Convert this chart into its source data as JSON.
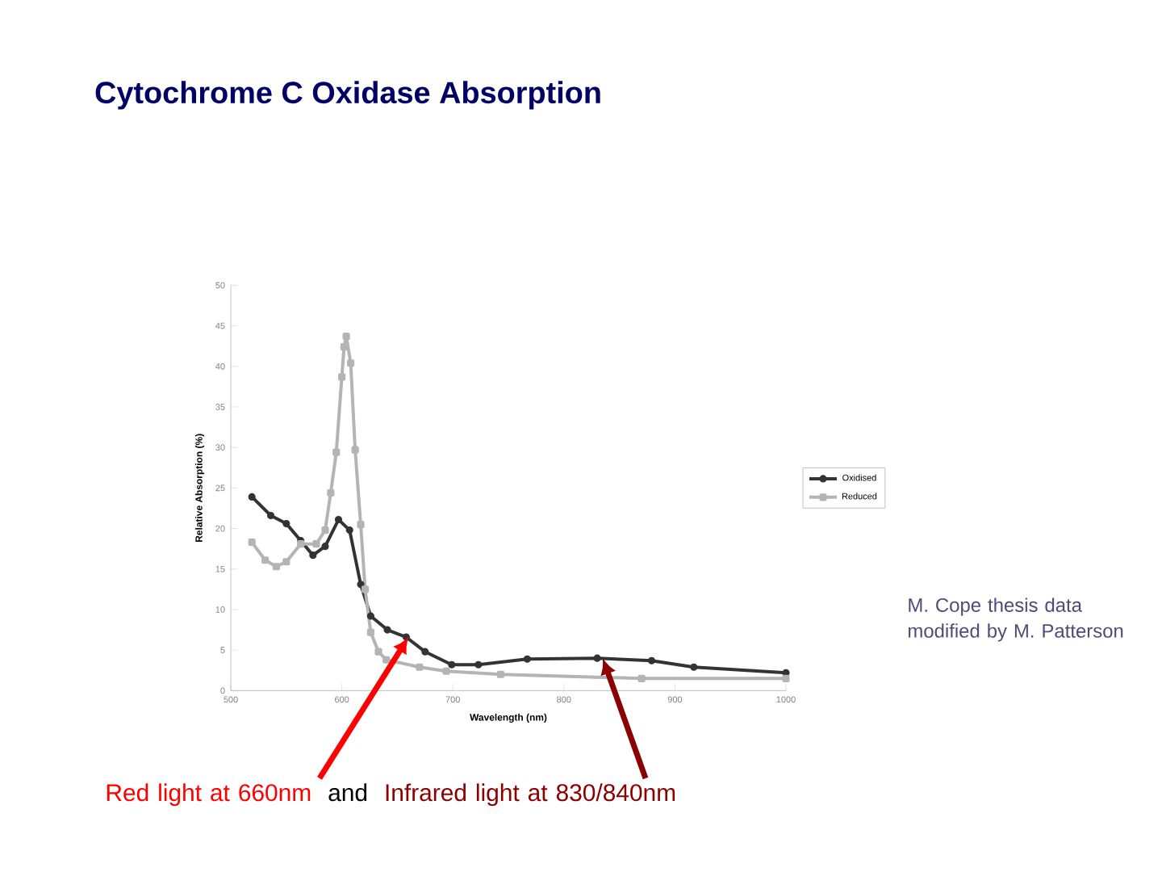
{
  "chart_data": {
    "type": "line",
    "title": "Cytochrome C Oxidase Absorption",
    "xlabel": "Wavelength (nm)",
    "ylabel": "Relative Absorption (%)",
    "xlim": [
      500,
      1000
    ],
    "xticks": [
      500,
      600,
      700,
      800,
      900,
      1000
    ],
    "ylim": [
      0,
      50
    ],
    "yticks": [
      0,
      5,
      10,
      15,
      20,
      25,
      30,
      35,
      40,
      45,
      50
    ],
    "legend": "right",
    "grid": false,
    "series": [
      {
        "name": "Oxidised",
        "color": "#333333",
        "marker": "circle",
        "x": [
          519,
          536,
          550,
          563,
          574,
          585,
          597,
          607,
          617,
          626,
          641,
          658,
          675,
          699,
          723,
          767,
          830,
          879,
          917,
          1000
        ],
        "values": [
          23.9,
          21.6,
          20.6,
          18.5,
          16.7,
          17.8,
          21.1,
          19.8,
          13.1,
          9.2,
          7.5,
          6.6,
          4.8,
          3.2,
          3.2,
          3.9,
          4.0,
          3.7,
          2.9,
          2.2
        ]
      },
      {
        "name": "Reduced",
        "color": "#b4b4b4",
        "marker": "square",
        "x": [
          519,
          531,
          541,
          550,
          563,
          577,
          585,
          590,
          595,
          600,
          602,
          604,
          608,
          612,
          617,
          621,
          626,
          633,
          640,
          670,
          694,
          743,
          870,
          1000
        ],
        "values": [
          18.3,
          16.1,
          15.3,
          15.9,
          18.1,
          18.1,
          19.8,
          24.4,
          29.4,
          38.7,
          42.4,
          43.7,
          40.4,
          29.7,
          20.5,
          12.5,
          7.2,
          4.8,
          3.8,
          2.9,
          2.4,
          2.0,
          1.5,
          1.5
        ]
      }
    ],
    "annotations": [
      {
        "text": "Red light at 660nm",
        "x": 660,
        "y": 6.6
      },
      "and",
      {
        "text": "Infrared light at 830/840nm",
        "x": 835,
        "y": 4.0
      },
      "M. Cope thesis data modified by M. Patterson"
    ]
  }
}
